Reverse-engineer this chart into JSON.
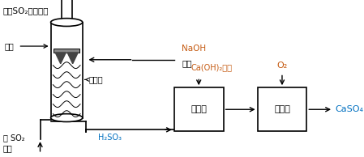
{
  "bg_color": "#ffffff",
  "black": "#000000",
  "blue": "#1f4e79",
  "orange": "#c55a11",
  "cyan_blue": "#0070c0",
  "fig_width": 4.49,
  "fig_height": 1.94,
  "dpi": 100,
  "text_top": "除去SO₂后的烟气",
  "text_pen": "喷雾",
  "text_xst": "吸收塔",
  "text_so2": "含 SO₂\n烟气",
  "text_h2so3": "H₂SO₃",
  "text_naoh1": "NaOH",
  "text_naoh2": "溶液",
  "text_caoh": "Ca(OH)₂溶液",
  "text_jcs": "沉淤室",
  "text_yhs": "氧化室",
  "text_o2": "O₂",
  "text_caso4": "CaSO₄"
}
